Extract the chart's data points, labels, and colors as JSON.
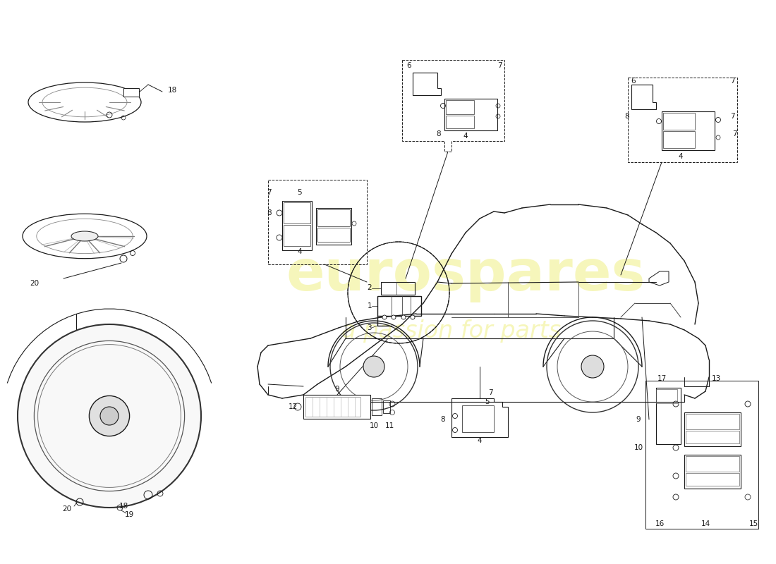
{
  "background_color": "#ffffff",
  "line_color": "#1a1a1a",
  "fig_width": 11.0,
  "fig_height": 8.0,
  "dpi": 100,
  "watermark_color": "#f5f5b0",
  "watermark_alpha": 0.85
}
